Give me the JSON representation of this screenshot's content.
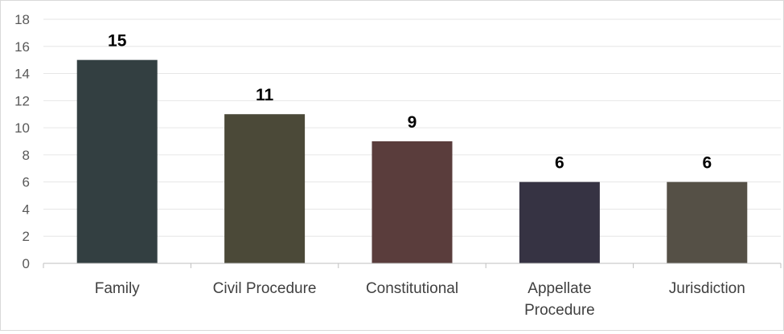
{
  "chart_data": {
    "type": "bar",
    "categories": [
      "Family",
      "Civil Procedure",
      "Constitutional",
      "Appellate Procedure",
      "Jurisdiction"
    ],
    "category_lines": [
      [
        "Family"
      ],
      [
        "Civil Procedure"
      ],
      [
        "Constitutional"
      ],
      [
        "Appellate",
        "Procedure"
      ],
      [
        "Jurisdiction"
      ]
    ],
    "values": [
      15,
      11,
      9,
      6,
      6
    ],
    "data_labels": [
      "15",
      "11",
      "9",
      "6",
      "6"
    ],
    "title": "",
    "xlabel": "",
    "ylabel": "",
    "ylim": [
      0,
      18
    ],
    "yticks": [
      0,
      2,
      4,
      6,
      8,
      10,
      12,
      14,
      16,
      18
    ],
    "grid": true,
    "legend": "none",
    "colors": [
      "#333f41",
      "#4b4938",
      "#5a3d3c",
      "#363343",
      "#555046"
    ]
  }
}
